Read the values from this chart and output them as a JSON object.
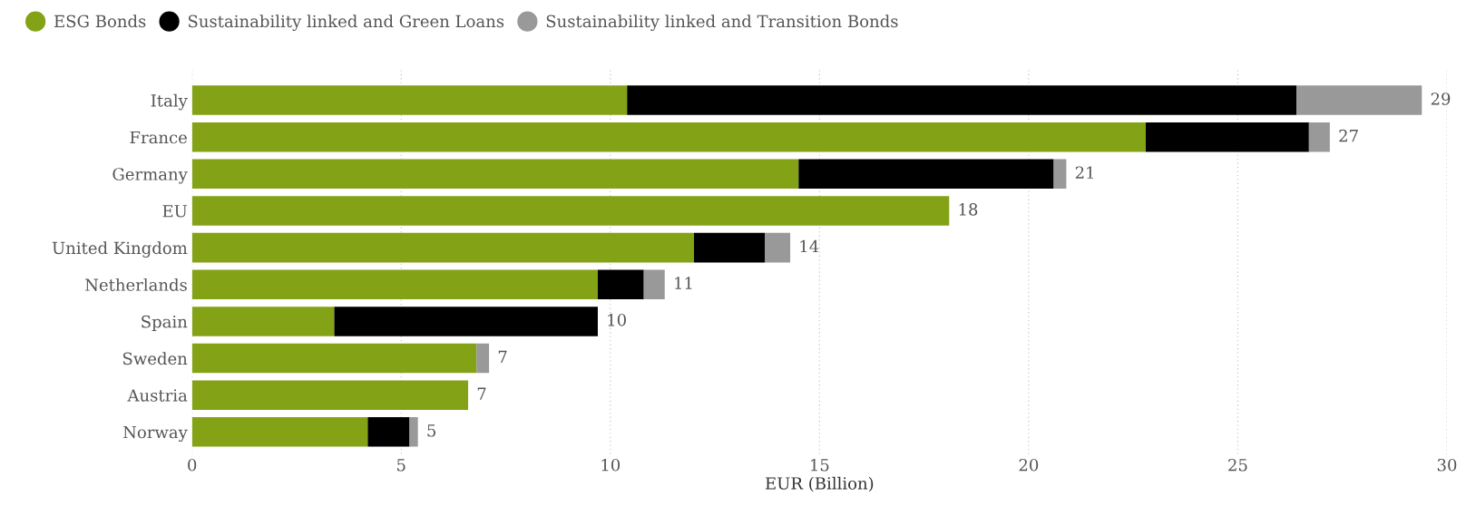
{
  "chart_data": {
    "type": "bar",
    "orientation": "horizontal",
    "stacked": true,
    "xlabel": "EUR (Billion)",
    "categories": [
      "Italy",
      "France",
      "Germany",
      "EU",
      "United Kingdom",
      "Netherlands",
      "Spain",
      "Sweden",
      "Austria",
      "Norway"
    ],
    "series": [
      {
        "name": "ESG Bonds",
        "color": "#84a216",
        "values": [
          10.4,
          22.8,
          14.5,
          18.1,
          12.0,
          9.7,
          3.4,
          6.8,
          6.6,
          4.2
        ]
      },
      {
        "name": "Sustainability linked and Green Loans",
        "color": "#000000",
        "values": [
          16.0,
          3.9,
          6.1,
          null,
          1.7,
          1.1,
          6.3,
          null,
          null,
          1.0
        ]
      },
      {
        "name": "Sustainability linked and Transition Bonds",
        "color": "#999999",
        "values": [
          3.0,
          0.5,
          0.3,
          null,
          0.6,
          0.5,
          null,
          0.3,
          null,
          0.2
        ]
      }
    ],
    "totals": [
      "29",
      "27",
      "21",
      "18",
      "14",
      "11",
      "10",
      "7",
      "7",
      "5"
    ],
    "xlim": [
      0,
      30
    ],
    "xticks": [
      0,
      5,
      10,
      15,
      20,
      25,
      30
    ],
    "grid": "x",
    "legend": "top left",
    "marker": "circle"
  }
}
